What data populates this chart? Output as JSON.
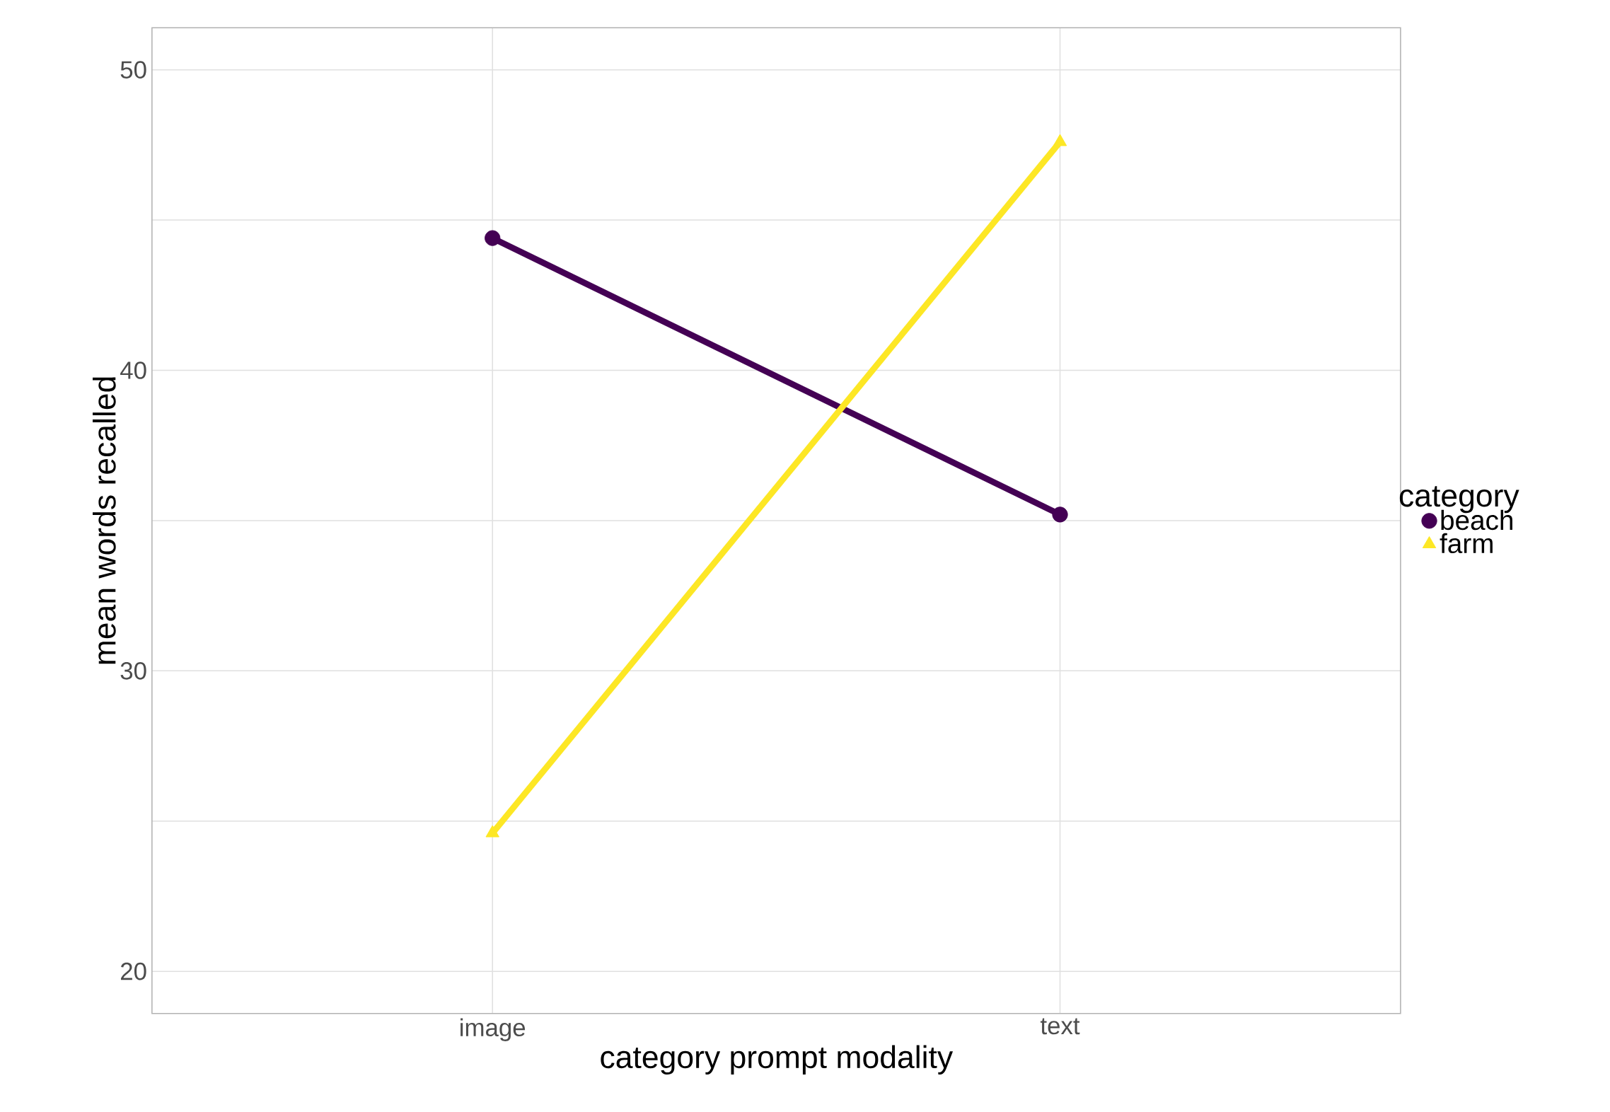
{
  "chart_data": {
    "type": "line",
    "xlabel": "category prompt modality",
    "ylabel": "mean words recalled",
    "legend_title": "category",
    "categories": [
      "image",
      "text"
    ],
    "series": [
      {
        "name": "beach",
        "color": "#440154",
        "marker": "circle",
        "values": [
          44.4,
          35.2
        ]
      },
      {
        "name": "farm",
        "color": "#fde725",
        "marker": "triangle",
        "values": [
          24.6,
          47.6
        ]
      }
    ],
    "ylim": [
      18.6,
      51.4
    ],
    "yticks": [
      20,
      {
        "value": 25,
        "label": null
      },
      30,
      {
        "value": 35,
        "label": null
      },
      40,
      {
        "value": 45,
        "label": null
      },
      50
    ],
    "grid": true,
    "legend": "right"
  }
}
